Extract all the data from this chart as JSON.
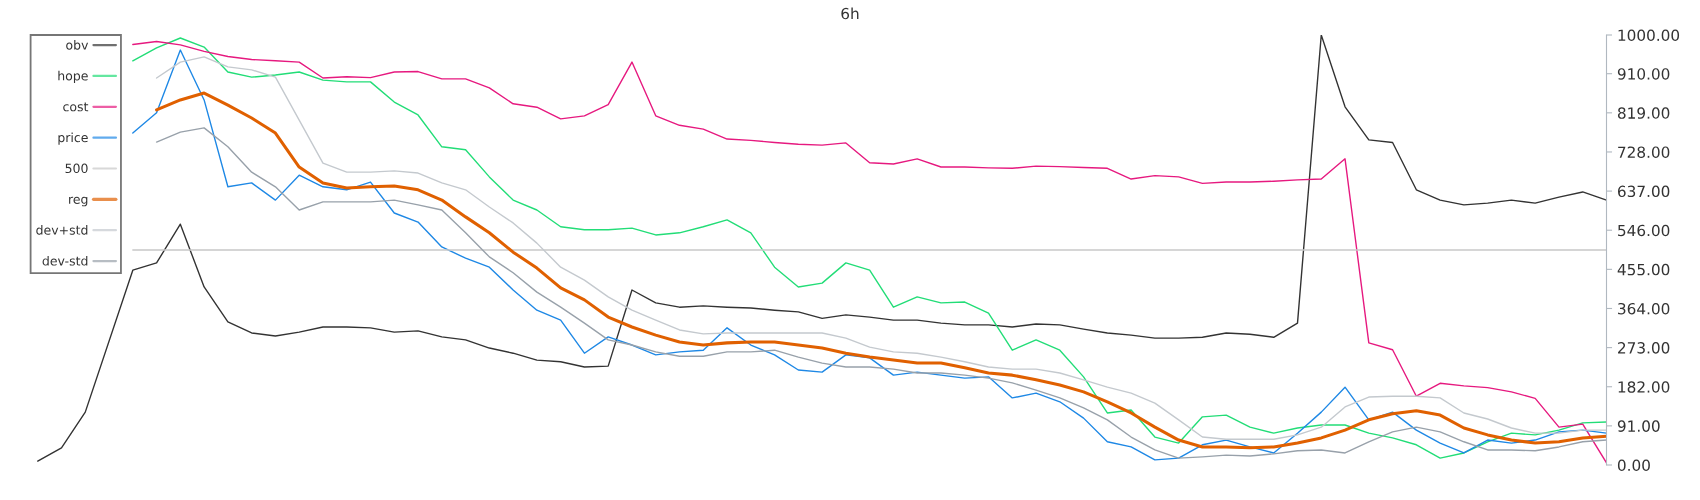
{
  "chart_data": {
    "type": "line",
    "title": "6h",
    "categories": [
      null,
      null,
      null,
      null,
      null,
      null,
      null,
      null,
      null,
      null,
      null,
      null,
      null,
      null,
      null,
      null,
      null,
      null,
      null,
      null,
      null,
      null,
      null,
      null,
      null,
      null,
      null,
      null,
      null,
      null,
      null,
      null,
      null,
      null,
      null,
      null,
      null,
      null,
      null,
      null,
      null,
      null,
      null,
      null,
      null,
      null,
      null,
      null,
      null,
      null,
      null,
      null,
      null,
      null,
      null,
      null,
      null,
      null,
      null,
      null,
      null,
      null,
      null,
      null,
      null,
      null,
      null
    ],
    "series": [
      {
        "name": "obv",
        "color": "#333333",
        "values": [
          9,
          40,
          123,
          null,
          453,
          470,
          560,
          414,
          333,
          307,
          300,
          309,
          321,
          321,
          319,
          309,
          312,
          298,
          291,
          272,
          260,
          244,
          240,
          228,
          230,
          407,
          377,
          367,
          370,
          367,
          365,
          360,
          356,
          341,
          349,
          344,
          337,
          337,
          330,
          326,
          326,
          321,
          328,
          326,
          316,
          307,
          302,
          295,
          295,
          297,
          307,
          304,
          297,
          330,
          1000,
          833,
          756,
          750,
          640,
          616,
          605,
          609,
          616,
          609,
          623,
          635,
          616
        ]
      },
      {
        "name": "hope",
        "color": "#22dd77",
        "values": [
          null,
          null,
          null,
          null,
          940,
          970,
          993,
          972,
          914,
          902,
          907,
          914,
          895,
          891,
          891,
          844,
          814,
          740,
          733,
          670,
          616,
          593,
          554,
          547,
          547,
          551,
          535,
          540,
          554,
          570,
          540,
          460,
          414,
          423,
          470,
          453,
          367,
          391,
          377,
          379,
          353,
          267,
          291,
          267,
          205,
          121,
          128,
          65,
          51,
          112,
          116,
          88,
          74,
          86,
          93,
          93,
          74,
          63,
          47,
          16,
          28,
          54,
          74,
          70,
          81,
          98,
          100
        ]
      },
      {
        "name": "cost",
        "color": "#e6197f",
        "values": [
          null,
          null,
          null,
          null,
          978,
          985,
          977,
          962,
          950,
          943,
          940,
          937,
          900,
          903,
          901,
          914,
          915,
          898,
          898,
          877,
          840,
          832,
          805,
          812,
          838,
          937,
          812,
          790,
          781,
          758,
          755,
          750,
          746,
          744,
          749,
          703,
          700,
          712,
          693,
          693,
          691,
          690,
          695,
          694,
          692,
          690,
          665,
          673,
          670,
          655,
          658,
          658,
          660,
          663,
          665,
          712,
          284,
          268,
          160,
          190,
          184,
          180,
          170,
          155,
          88,
          95,
          5
        ]
      },
      {
        "name": "price",
        "color": "#1e88e5",
        "values": [
          null,
          null,
          null,
          null,
          772,
          819,
          965,
          849,
          647,
          656,
          616,
          674,
          647,
          640,
          658,
          586,
          565,
          507,
          481,
          460,
          407,
          360,
          337,
          260,
          298,
          279,
          256,
          263,
          267,
          319,
          279,
          256,
          221,
          216,
          256,
          249,
          209,
          216,
          209,
          202,
          205,
          156,
          167,
          147,
          109,
          54,
          42,
          12,
          16,
          47,
          58,
          42,
          28,
          74,
          123,
          181,
          105,
          123,
          81,
          51,
          28,
          58,
          51,
          58,
          77,
          81,
          74
        ]
      },
      {
        "name": "500",
        "color": "#c8c8c8",
        "values": [
          null,
          null,
          null,
          null,
          500,
          500,
          500,
          500,
          500,
          500,
          500,
          500,
          500,
          500,
          500,
          500,
          500,
          500,
          500,
          500,
          500,
          500,
          500,
          500,
          500,
          500,
          500,
          500,
          500,
          500,
          500,
          500,
          500,
          500,
          500,
          500,
          500,
          500,
          500,
          500,
          500,
          500,
          500,
          500,
          500,
          500,
          500,
          500,
          500,
          500,
          500,
          500,
          500,
          500,
          500,
          500,
          500,
          500,
          500,
          500,
          500,
          500,
          500,
          500,
          500,
          500,
          500
        ]
      },
      {
        "name": "reg",
        "color": "#e06000",
        "values": [
          null,
          null,
          null,
          null,
          null,
          826,
          849,
          865,
          837,
          807,
          772,
          693,
          656,
          644,
          647,
          649,
          640,
          616,
          577,
          540,
          495,
          458,
          412,
          384,
          344,
          321,
          302,
          286,
          279,
          284,
          286,
          286,
          279,
          272,
          260,
          251,
          244,
          237,
          237,
          226,
          214,
          209,
          198,
          186,
          170,
          147,
          121,
          88,
          58,
          42,
          42,
          40,
          42,
          51,
          63,
          81,
          105,
          119,
          126,
          116,
          86,
          70,
          58,
          51,
          54,
          63,
          67
        ]
      },
      {
        "name": "dev+std",
        "color": "#c4c9ce",
        "values": [
          null,
          null,
          null,
          null,
          null,
          900,
          937,
          949,
          926,
          919,
          902,
          802,
          702,
          681,
          681,
          684,
          679,
          656,
          640,
          600,
          563,
          516,
          460,
          430,
          391,
          360,
          337,
          314,
          305,
          307,
          307,
          307,
          307,
          307,
          295,
          274,
          263,
          260,
          251,
          240,
          228,
          223,
          223,
          214,
          198,
          181,
          167,
          144,
          105,
          65,
          60,
          60,
          60,
          70,
          88,
          135,
          158,
          160,
          160,
          156,
          121,
          107,
          86,
          74,
          74,
          81,
          81
        ]
      },
      {
        "name": "dev-std",
        "color": "#98a1aa",
        "values": [
          null,
          null,
          null,
          null,
          null,
          751,
          774,
          784,
          740,
          681,
          647,
          593,
          612,
          612,
          612,
          616,
          605,
          593,
          540,
          484,
          447,
          402,
          367,
          330,
          291,
          279,
          263,
          253,
          253,
          263,
          263,
          267,
          251,
          237,
          228,
          228,
          223,
          214,
          214,
          209,
          202,
          191,
          174,
          156,
          133,
          105,
          65,
          35,
          16,
          19,
          23,
          21,
          26,
          33,
          35,
          28,
          54,
          77,
          88,
          77,
          54,
          35,
          35,
          33,
          42,
          54,
          58
        ]
      }
    ],
    "ylim": [
      0,
      1000
    ],
    "yticks": [
      {
        "value": 0,
        "label": "0.00"
      },
      {
        "value": 91,
        "label": "91.00"
      },
      {
        "value": 182,
        "label": "182.00"
      },
      {
        "value": 273,
        "label": "273.00"
      },
      {
        "value": 364,
        "label": "364.00"
      },
      {
        "value": 455,
        "label": "455.00"
      },
      {
        "value": 546,
        "label": "546.00"
      },
      {
        "value": 637,
        "label": "637.00"
      },
      {
        "value": 728,
        "label": "728.00"
      },
      {
        "value": 819,
        "label": "819.00"
      },
      {
        "value": 910,
        "label": "910.00"
      },
      {
        "value": 1000,
        "label": "1000.00"
      }
    ],
    "tick_labels": "y",
    "grid": false,
    "legend": "top left",
    "marker": "none",
    "line_style": "solid"
  }
}
